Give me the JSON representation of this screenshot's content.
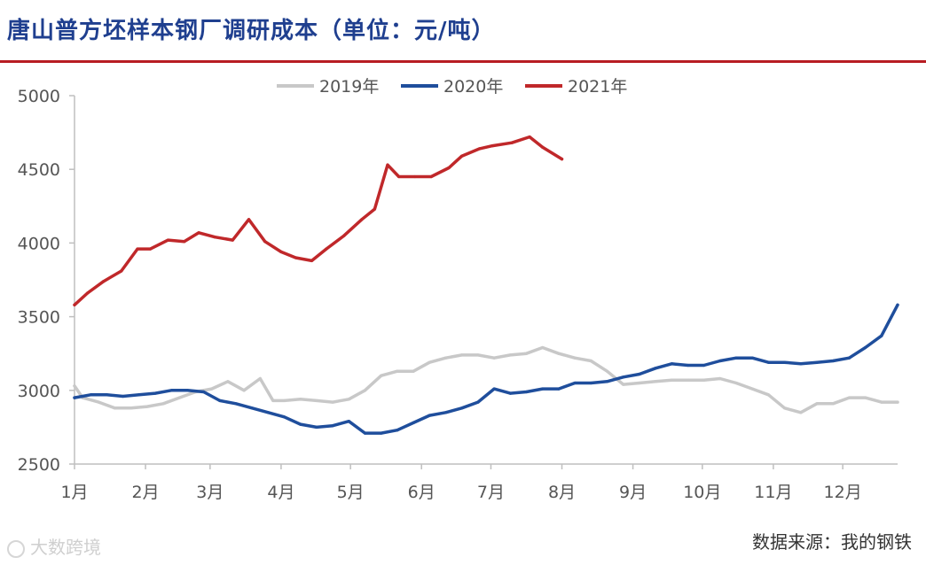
{
  "chart_data": {
    "type": "line",
    "title": "唐山普方坯样本钢厂调研成本（单位：元/吨）",
    "ylim": [
      2500,
      5000
    ],
    "yticks": [
      2500,
      3000,
      3500,
      4000,
      4500,
      5000
    ],
    "xlim": [
      1,
      52
    ],
    "xticks": [
      {
        "label": "1月",
        "week": 1
      },
      {
        "label": "2月",
        "week": 5.4
      },
      {
        "label": "3月",
        "week": 9.4
      },
      {
        "label": "4月",
        "week": 13.8
      },
      {
        "label": "5月",
        "week": 18.1
      },
      {
        "label": "6月",
        "week": 22.5
      },
      {
        "label": "7月",
        "week": 26.8
      },
      {
        "label": "8月",
        "week": 31.2
      },
      {
        "label": "9月",
        "week": 35.6
      },
      {
        "label": "10月",
        "week": 39.9
      },
      {
        "label": "11月",
        "week": 44.3
      },
      {
        "label": "12月",
        "week": 48.6
      }
    ],
    "legend_position": "top-center",
    "series": [
      {
        "name": "2019年",
        "color": "#c8c8c8",
        "x": [
          1,
          1.5,
          2.5,
          3.5,
          4.5,
          5.5,
          6.5,
          7.5,
          8.5,
          9.5,
          10.5,
          11.5,
          12.5,
          13.3,
          14,
          15,
          16,
          17,
          18,
          19,
          20,
          21,
          22,
          23,
          24,
          25,
          26,
          27,
          28,
          29,
          30,
          31,
          32,
          33,
          34,
          35,
          36,
          37,
          38,
          39,
          40,
          41,
          42,
          43,
          44,
          45,
          46,
          47,
          48,
          49,
          50,
          51,
          52
        ],
        "values": [
          3030,
          2950,
          2920,
          2880,
          2880,
          2890,
          2910,
          2950,
          2990,
          3010,
          3060,
          3000,
          3080,
          2930,
          2930,
          2940,
          2930,
          2920,
          2940,
          3000,
          3100,
          3130,
          3130,
          3190,
          3220,
          3240,
          3240,
          3220,
          3240,
          3250,
          3290,
          3250,
          3220,
          3200,
          3130,
          3040,
          3050,
          3060,
          3070,
          3070,
          3070,
          3080,
          3050,
          3010,
          2970,
          2880,
          2850,
          2910,
          2910,
          2950,
          2950,
          2920,
          2920
        ]
      },
      {
        "name": "2020年",
        "color": "#1f4e9c",
        "x": [
          1,
          2,
          3,
          4,
          5,
          6,
          7,
          8,
          9,
          10,
          11,
          12,
          13,
          14,
          15,
          16,
          17,
          18,
          19,
          20,
          21,
          22,
          23,
          24,
          25,
          26,
          27,
          28,
          29,
          30,
          31,
          32,
          33,
          34,
          35,
          36,
          37,
          38,
          39,
          40,
          41,
          42,
          43,
          44,
          45,
          46,
          47,
          48,
          49,
          50,
          51,
          52
        ],
        "values": [
          2950,
          2970,
          2970,
          2960,
          2970,
          2980,
          3000,
          3000,
          2990,
          2930,
          2910,
          2880,
          2850,
          2820,
          2770,
          2750,
          2760,
          2790,
          2710,
          2710,
          2730,
          2780,
          2830,
          2850,
          2880,
          2920,
          3010,
          2980,
          2990,
          3010,
          3010,
          3050,
          3050,
          3060,
          3090,
          3110,
          3150,
          3180,
          3170,
          3170,
          3200,
          3220,
          3220,
          3190,
          3190,
          3180,
          3190,
          3200,
          3220,
          3290,
          3370,
          3580
        ]
      },
      {
        "name": "2021年",
        "color": "#c0282a",
        "x": [
          1,
          1.8,
          2.8,
          3.9,
          4.9,
          5.7,
          6.8,
          7.8,
          8.7,
          9.7,
          10.8,
          11.8,
          12.8,
          13.8,
          14.7,
          15.7,
          16.6,
          17.7,
          18.8,
          19.6,
          20.4,
          21.1,
          22.1,
          23.1,
          24.2,
          25,
          26.1,
          26.9,
          28.1,
          29.2,
          30,
          31.2
        ],
        "values": [
          3580,
          3660,
          3740,
          3810,
          3960,
          3960,
          4020,
          4010,
          4070,
          4040,
          4020,
          4160,
          4010,
          3940,
          3900,
          3880,
          3960,
          4050,
          4160,
          4230,
          4530,
          4450,
          4450,
          4450,
          4510,
          4590,
          4640,
          4660,
          4680,
          4720,
          4650,
          4570
        ]
      }
    ]
  },
  "source": "数据来源：我的钢铁",
  "watermark": "大数跨境"
}
